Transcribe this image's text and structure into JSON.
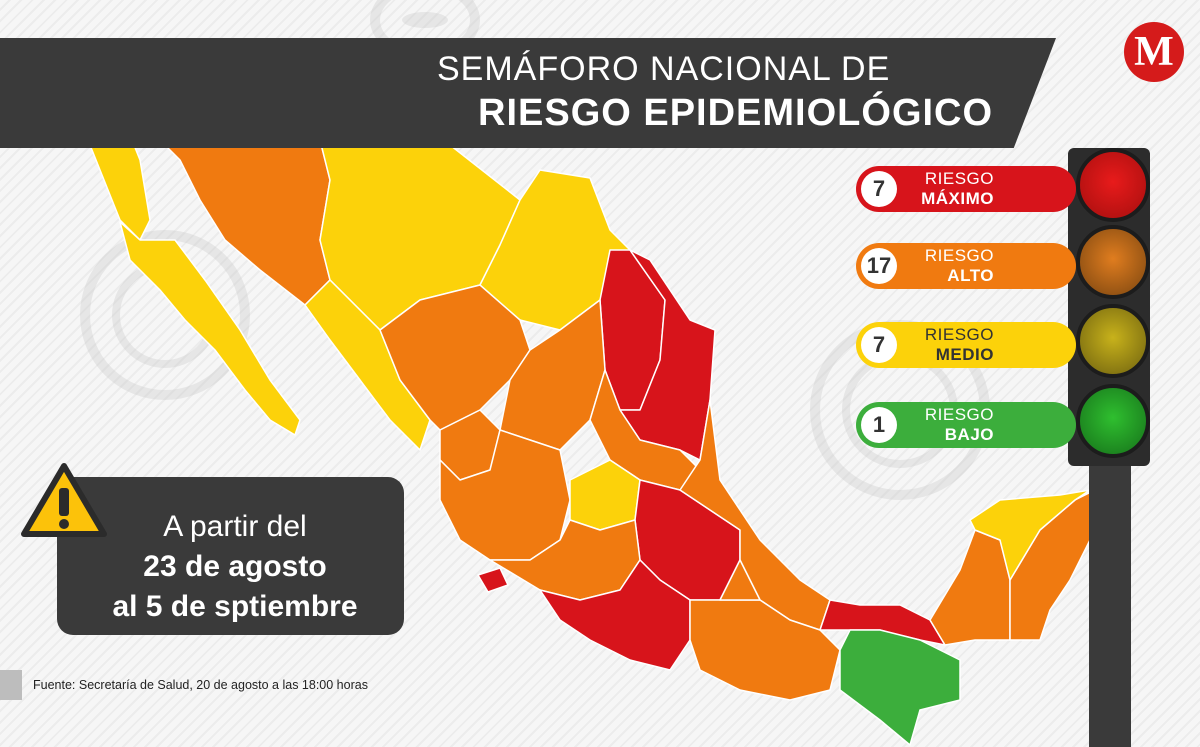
{
  "header": {
    "title_line1": "SEMÁFORO NACIONAL DE",
    "title_line2": "RIESGO EPIDEMIOLÓGICO"
  },
  "logo": {
    "letter": "M"
  },
  "legend": [
    {
      "count": "7",
      "label_prefix": "RIESGO ",
      "label_level": "MÁXIMO",
      "color": "#d7141b"
    },
    {
      "count": "17",
      "label_prefix": "RIESGO ",
      "label_level": "ALTO",
      "color": "#f07a10"
    },
    {
      "count": "7",
      "label_prefix": "RIESGO ",
      "label_level": "MEDIO",
      "color": "#fcd20a"
    },
    {
      "count": "1",
      "label_prefix": "RIESGO ",
      "label_level": "BAJO",
      "color": "#3cae3c"
    }
  ],
  "notice": {
    "line1": "A partir del",
    "line2": "23 de agosto",
    "line3": "al 5 de sptiembre"
  },
  "source": "Fuente: Secretaría de Salud, 20 de agosto a las 18:00 horas",
  "icons": [
    "warning-icon",
    "traffic-light-icon",
    "virus-icon"
  ],
  "colors": {
    "maximo": "#d7141b",
    "alto": "#f07a10",
    "medio": "#fcd20a",
    "bajo": "#3cae3c"
  }
}
